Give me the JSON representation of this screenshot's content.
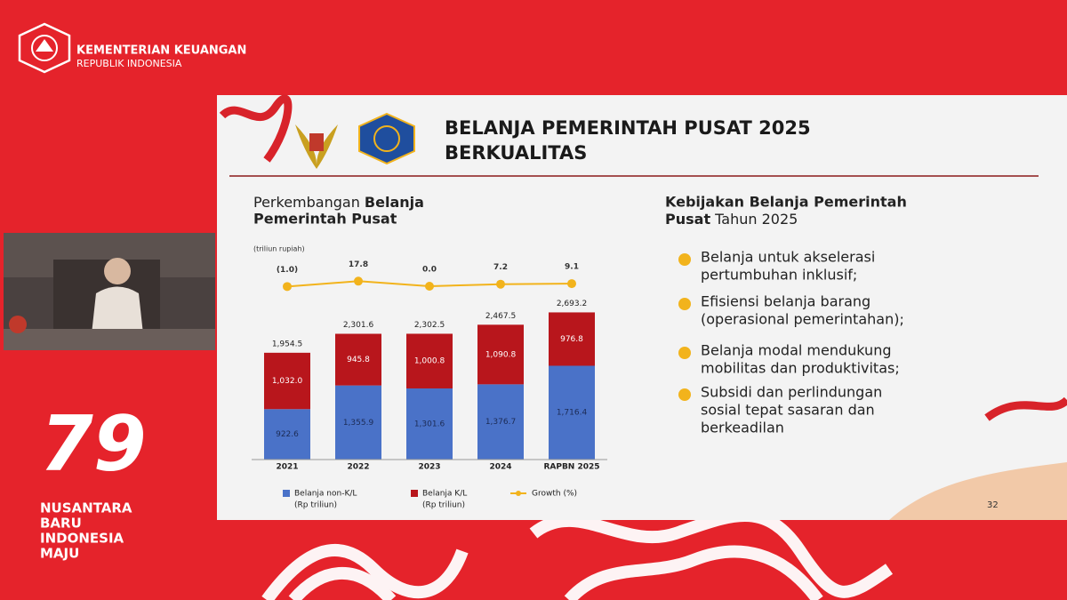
{
  "header": {
    "org": "KEMENTERIAN KEUANGAN",
    "sub": "REPUBLIK INDONESIA"
  },
  "side": {
    "logo_text": "79",
    "lines": [
      "NUSANTARA",
      "BARU",
      "INDONESIA",
      "MAJU"
    ]
  },
  "slide": {
    "title_lines": [
      "BELANJA PEMERINTAH PUSAT 2025",
      "BERKUALITAS"
    ],
    "page": "32",
    "policy": {
      "heading_bold_lines": [
        "Kebijakan Belanja Pemerintah",
        "Pusat"
      ],
      "heading_plain": " Tahun 2025",
      "bullets": [
        [
          "Belanja untuk akselerasi",
          "pertumbuhan inklusif;"
        ],
        [
          "Efisiensi belanja barang",
          "(operasional pemerintahan);"
        ],
        [
          "Belanja modal mendukung",
          "mobilitas dan produktivitas;"
        ],
        [
          "Subsidi dan perlindungan",
          "sosial tepat sasaran dan",
          "berkeadilan"
        ]
      ]
    }
  },
  "chart_data": {
    "type": "stacked_bar",
    "title_plain": "Perkembangan ",
    "title_bold": "Belanja",
    "title_bold_line2": "Pemerintah Pusat",
    "unit_label": "(triliun rupiah)",
    "categories": [
      "2021",
      "2022",
      "2023",
      "2024",
      "RAPBN 2025"
    ],
    "ylim": [
      0,
      3400
    ],
    "y2lim": [
      -100,
      100
    ],
    "series": [
      {
        "name": "Belanja non-K/L",
        "unit": "(Rp triliun)",
        "color": "#4a72c8",
        "values": [
          922.6,
          1355.9,
          1301.6,
          1376.7,
          1716.4
        ],
        "value_labels": [
          "922.6",
          "1,355.9",
          "1,301.6",
          "1,376.7",
          "1,716.4"
        ]
      },
      {
        "name": "Belanja K/L",
        "unit": "(Rp triliun)",
        "color": "#b8161c",
        "values": [
          1032.0,
          945.8,
          1000.8,
          1090.8,
          976.8
        ],
        "value_labels": [
          "1,032.0",
          "945.8",
          "1,000.8",
          "1,090.8",
          "976.8"
        ]
      },
      {
        "name": "Growth (%)",
        "color": "#f2b31c",
        "axis": "y2",
        "values": [
          -1.0,
          17.8,
          0.0,
          7.2,
          9.1
        ],
        "value_labels": [
          "(1.0)",
          "17.8",
          "0.0",
          "7.2",
          "9.1"
        ]
      }
    ],
    "totals": {
      "values": [
        1954.5,
        2301.6,
        2302.5,
        2467.5,
        2693.2
      ],
      "value_labels": [
        "1,954.5",
        "2,301.6",
        "2,302.5",
        "2,467.5",
        "2,693.2"
      ]
    }
  }
}
